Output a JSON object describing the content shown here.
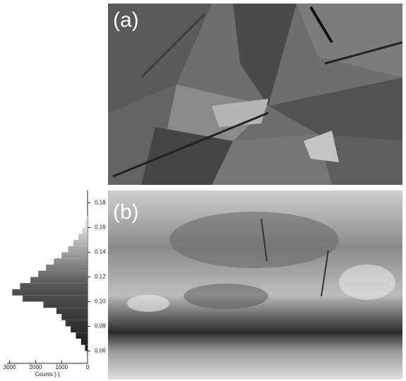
{
  "figure": {
    "panels": [
      "(a)",
      "(b)"
    ]
  },
  "chart_data": {
    "type": "histogram",
    "orientation": "horizontal",
    "x_label": "Counts [-]",
    "bins": [
      0.06,
      0.065,
      0.07,
      0.075,
      0.08,
      0.085,
      0.09,
      0.095,
      0.1,
      0.105,
      0.11,
      0.115,
      0.12,
      0.125,
      0.13,
      0.135,
      0.14,
      0.145,
      0.15,
      0.155,
      0.16,
      0.165,
      0.17
    ],
    "counts": [
      100,
      250,
      450,
      650,
      850,
      1000,
      1200,
      1700,
      2500,
      2900,
      2600,
      2200,
      1900,
      1600,
      1300,
      1000,
      750,
      550,
      350,
      200,
      100,
      50
    ],
    "xlim": [
      3100,
      0
    ],
    "xticks": [
      3000,
      2000,
      1000,
      0
    ],
    "ylim": [
      0.05,
      0.19
    ],
    "yticks": [
      0.06,
      0.08,
      {
        "value": 0.1,
        "label": "0.10"
      },
      0.12,
      0.14,
      0.16,
      0.18
    ]
  }
}
